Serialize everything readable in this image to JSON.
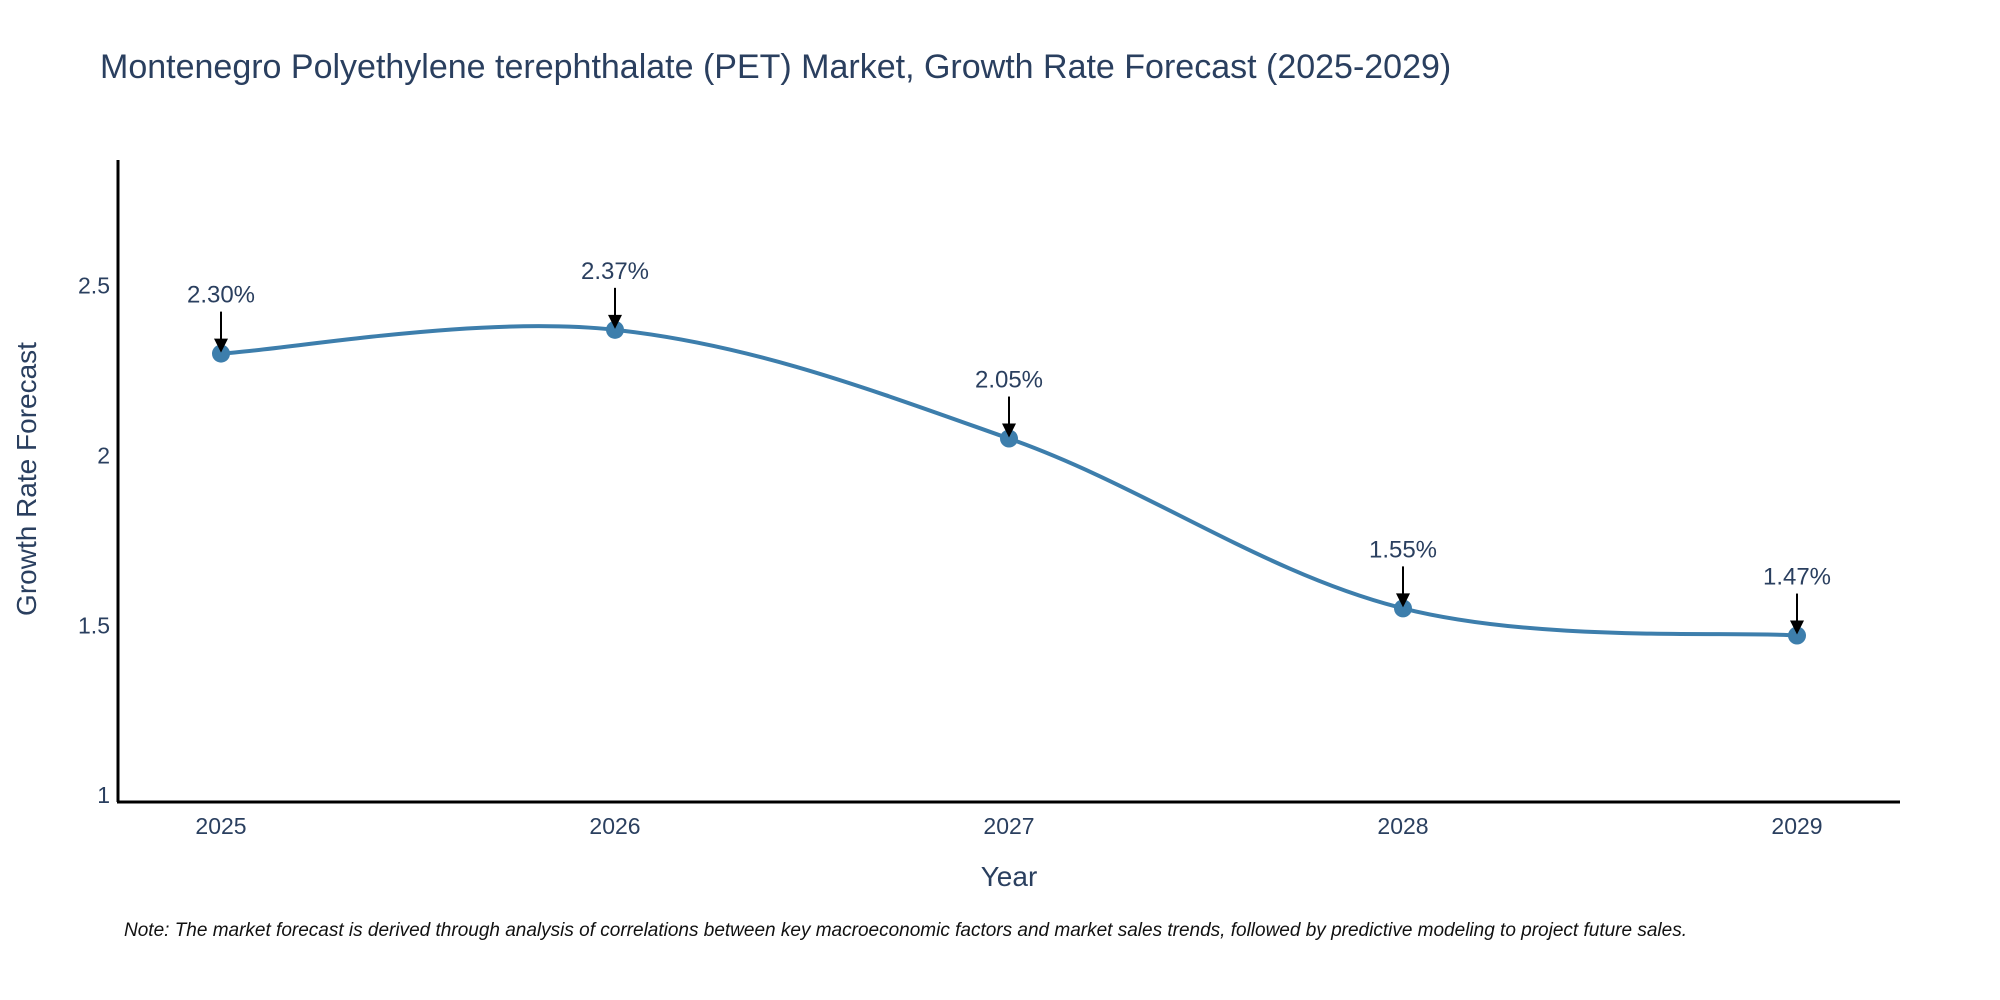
{
  "chart_data": {
    "type": "line",
    "title": "Montenegro Polyethylene terephthalate (PET) Market, Growth Rate Forecast (2025-2029)",
    "xlabel": "Year",
    "ylabel": "Growth Rate Forecast",
    "categories": [
      "2025",
      "2026",
      "2027",
      "2028",
      "2029"
    ],
    "series": [
      {
        "name": "Growth Rate Forecast",
        "values": [
          2.3,
          2.37,
          2.05,
          1.55,
          1.47
        ],
        "labels": [
          "2.30%",
          "2.37%",
          "2.05%",
          "1.55%",
          "1.47%"
        ],
        "color": "#3d7eac"
      }
    ],
    "yticks": [
      {
        "value": 1,
        "label": "1"
      },
      {
        "value": 1.5,
        "label": "1.5"
      },
      {
        "value": 2,
        "label": "2"
      },
      {
        "value": 2.5,
        "label": "2.5"
      }
    ],
    "ylim": [
      0.98,
      2.87
    ],
    "grid": false,
    "note": "Note: The market forecast is derived through analysis of correlations between key macroeconomic factors and market sales trends, followed by predictive modeling to project future sales."
  }
}
